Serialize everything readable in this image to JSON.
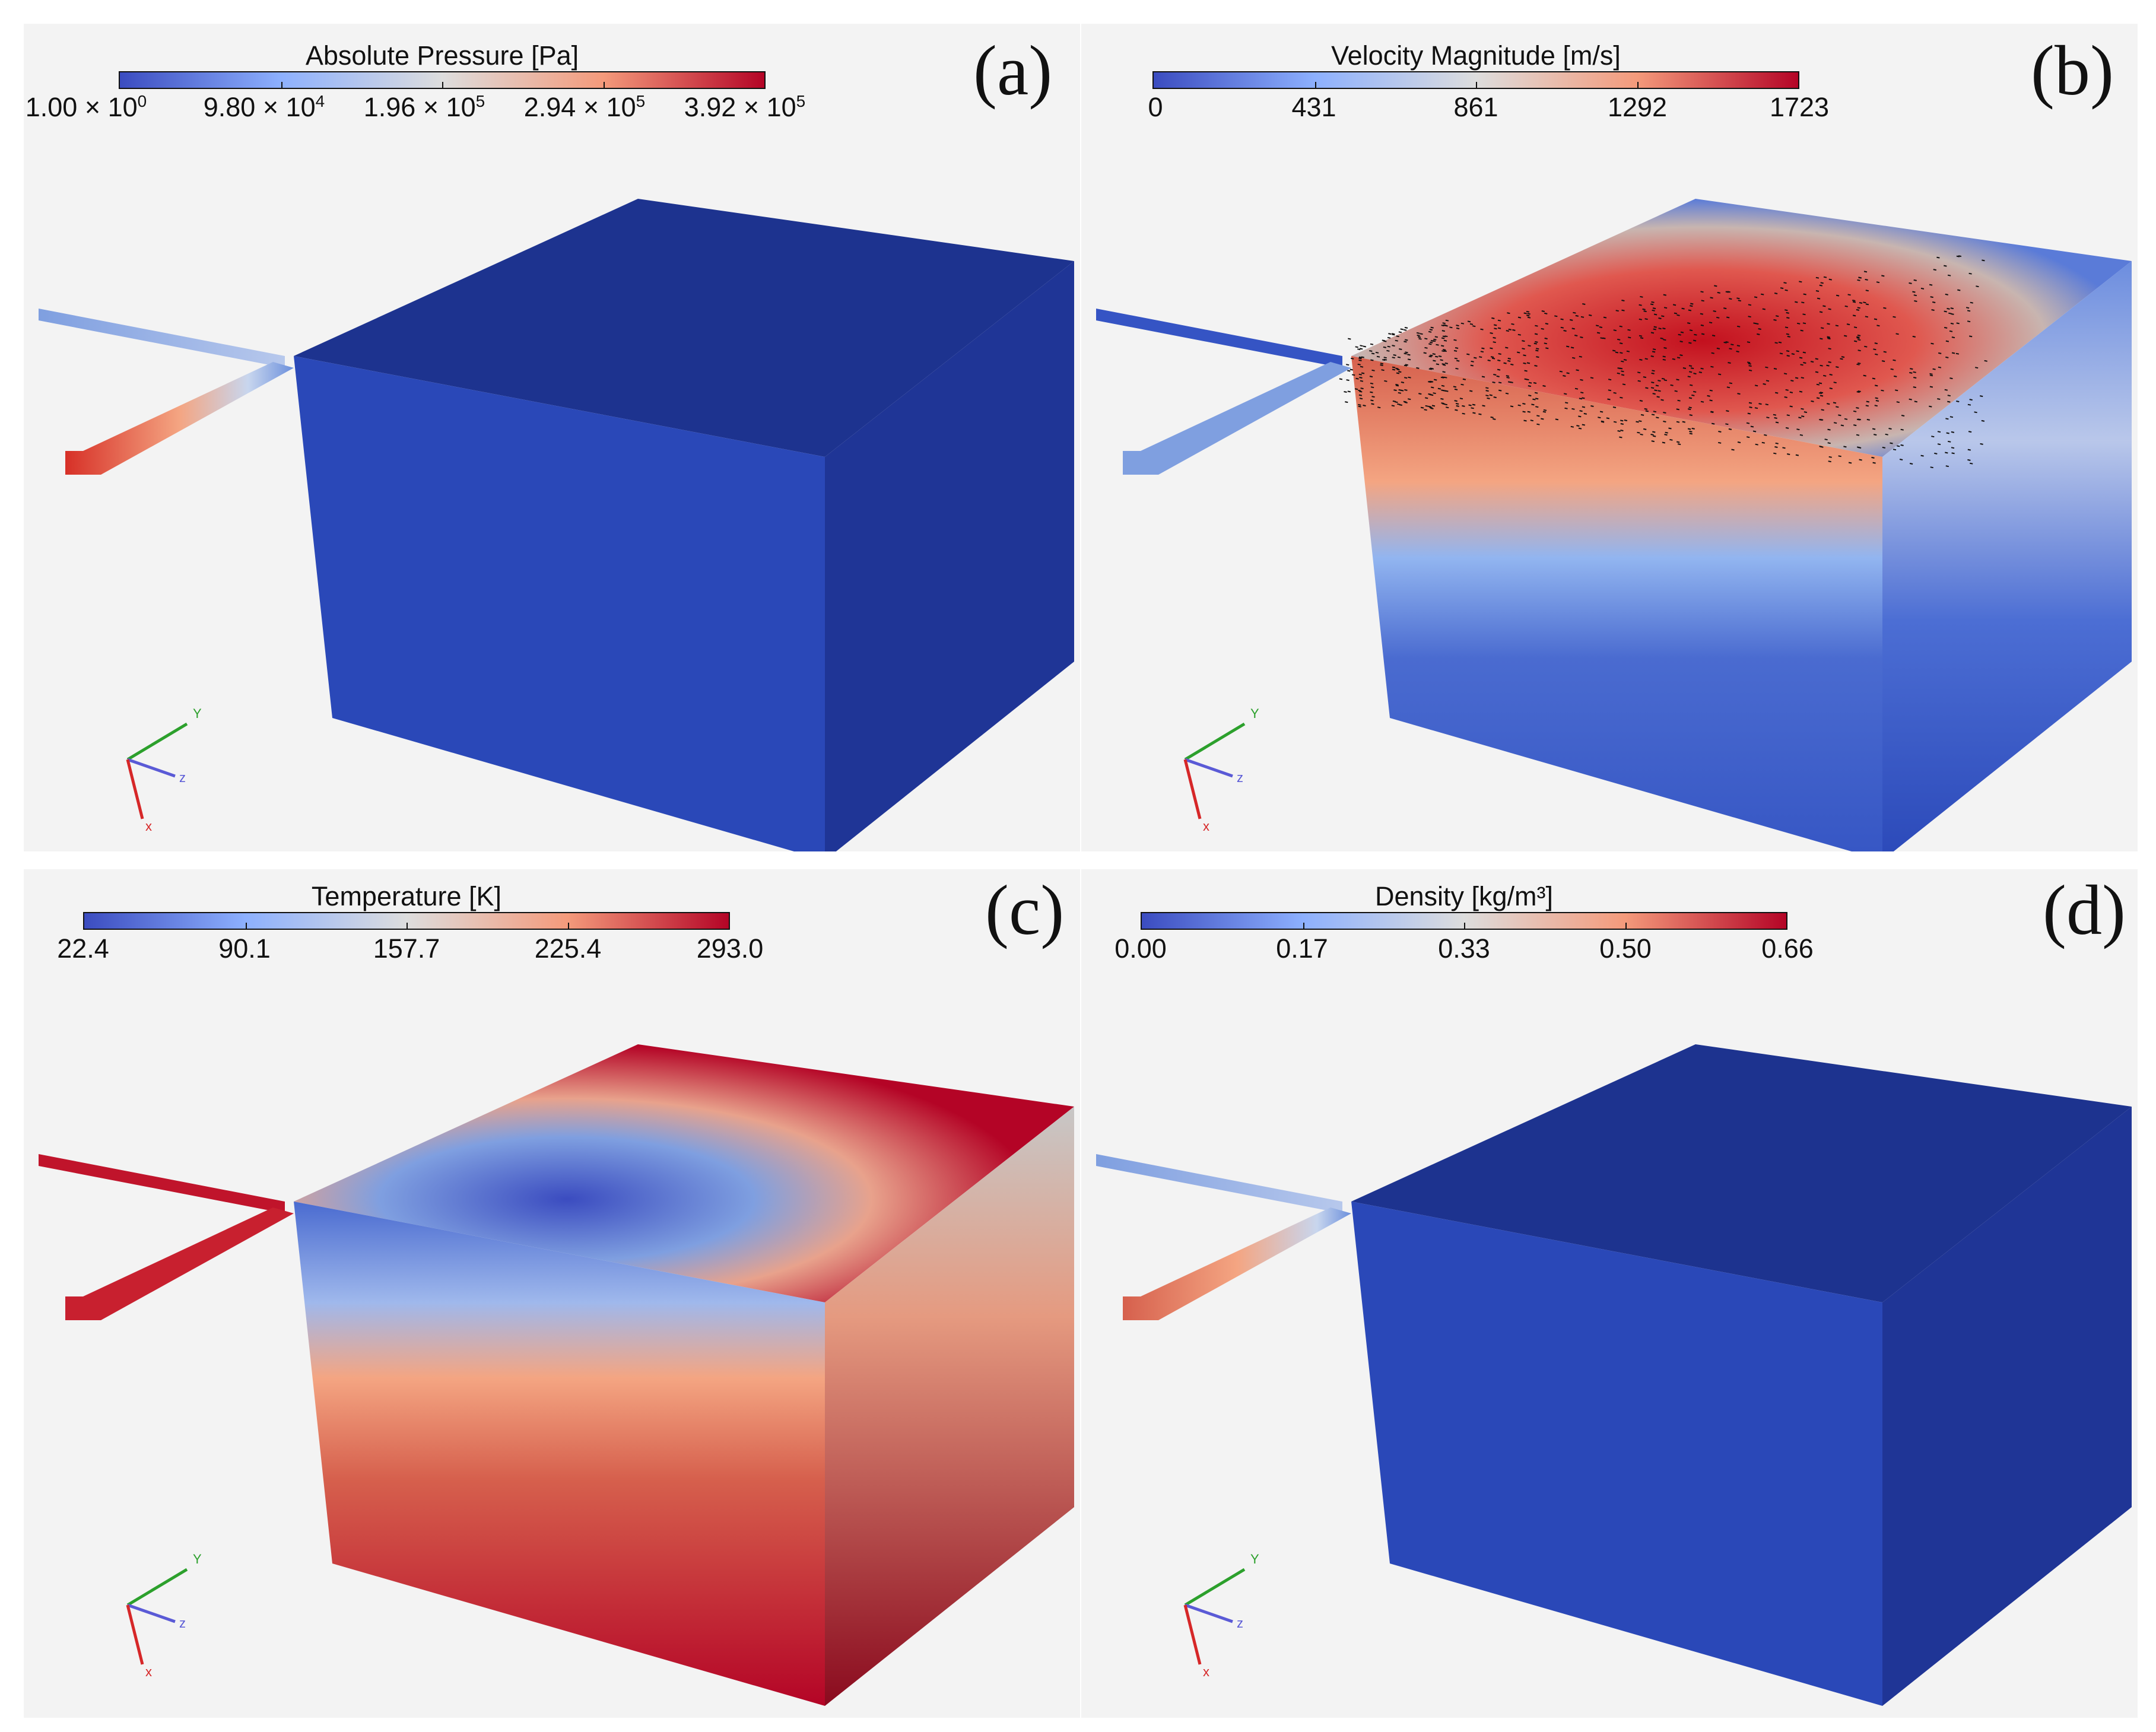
{
  "panels": [
    {
      "id": "a",
      "label": "(a)",
      "colorbar_title": "Absolute Pressure [Pa]",
      "ticks": [
        {
          "base": "1.00 × 10",
          "exp": "0"
        },
        {
          "base": "9.80 × 10",
          "exp": "4"
        },
        {
          "base": "1.96 × 10",
          "exp": "5"
        },
        {
          "base": "2.94 × 10",
          "exp": "5"
        },
        {
          "base": "3.92 × 10",
          "exp": "5"
        }
      ]
    },
    {
      "id": "b",
      "label": "(b)",
      "colorbar_title": "Velocity Magnitude [m/s]",
      "ticks": [
        {
          "base": "0"
        },
        {
          "base": "431"
        },
        {
          "base": "861"
        },
        {
          "base": "1292"
        },
        {
          "base": "1723"
        }
      ]
    },
    {
      "id": "c",
      "label": "(c)",
      "colorbar_title": "Temperature [K]",
      "ticks": [
        {
          "base": "22.4"
        },
        {
          "base": "90.1"
        },
        {
          "base": "157.7"
        },
        {
          "base": "225.4"
        },
        {
          "base": "293.0"
        }
      ]
    },
    {
      "id": "d",
      "label": "(d)",
      "colorbar_title": "Density [kg/m³]",
      "ticks": [
        {
          "base": "0.00"
        },
        {
          "base": "0.17"
        },
        {
          "base": "0.33"
        },
        {
          "base": "0.50"
        },
        {
          "base": "0.66"
        }
      ]
    }
  ],
  "axis_triad": {
    "x": "x",
    "y": "Y",
    "z": "z"
  },
  "colormap": {
    "low": "#3b4cc0",
    "mid": "#dddddd",
    "high": "#b40426"
  }
}
